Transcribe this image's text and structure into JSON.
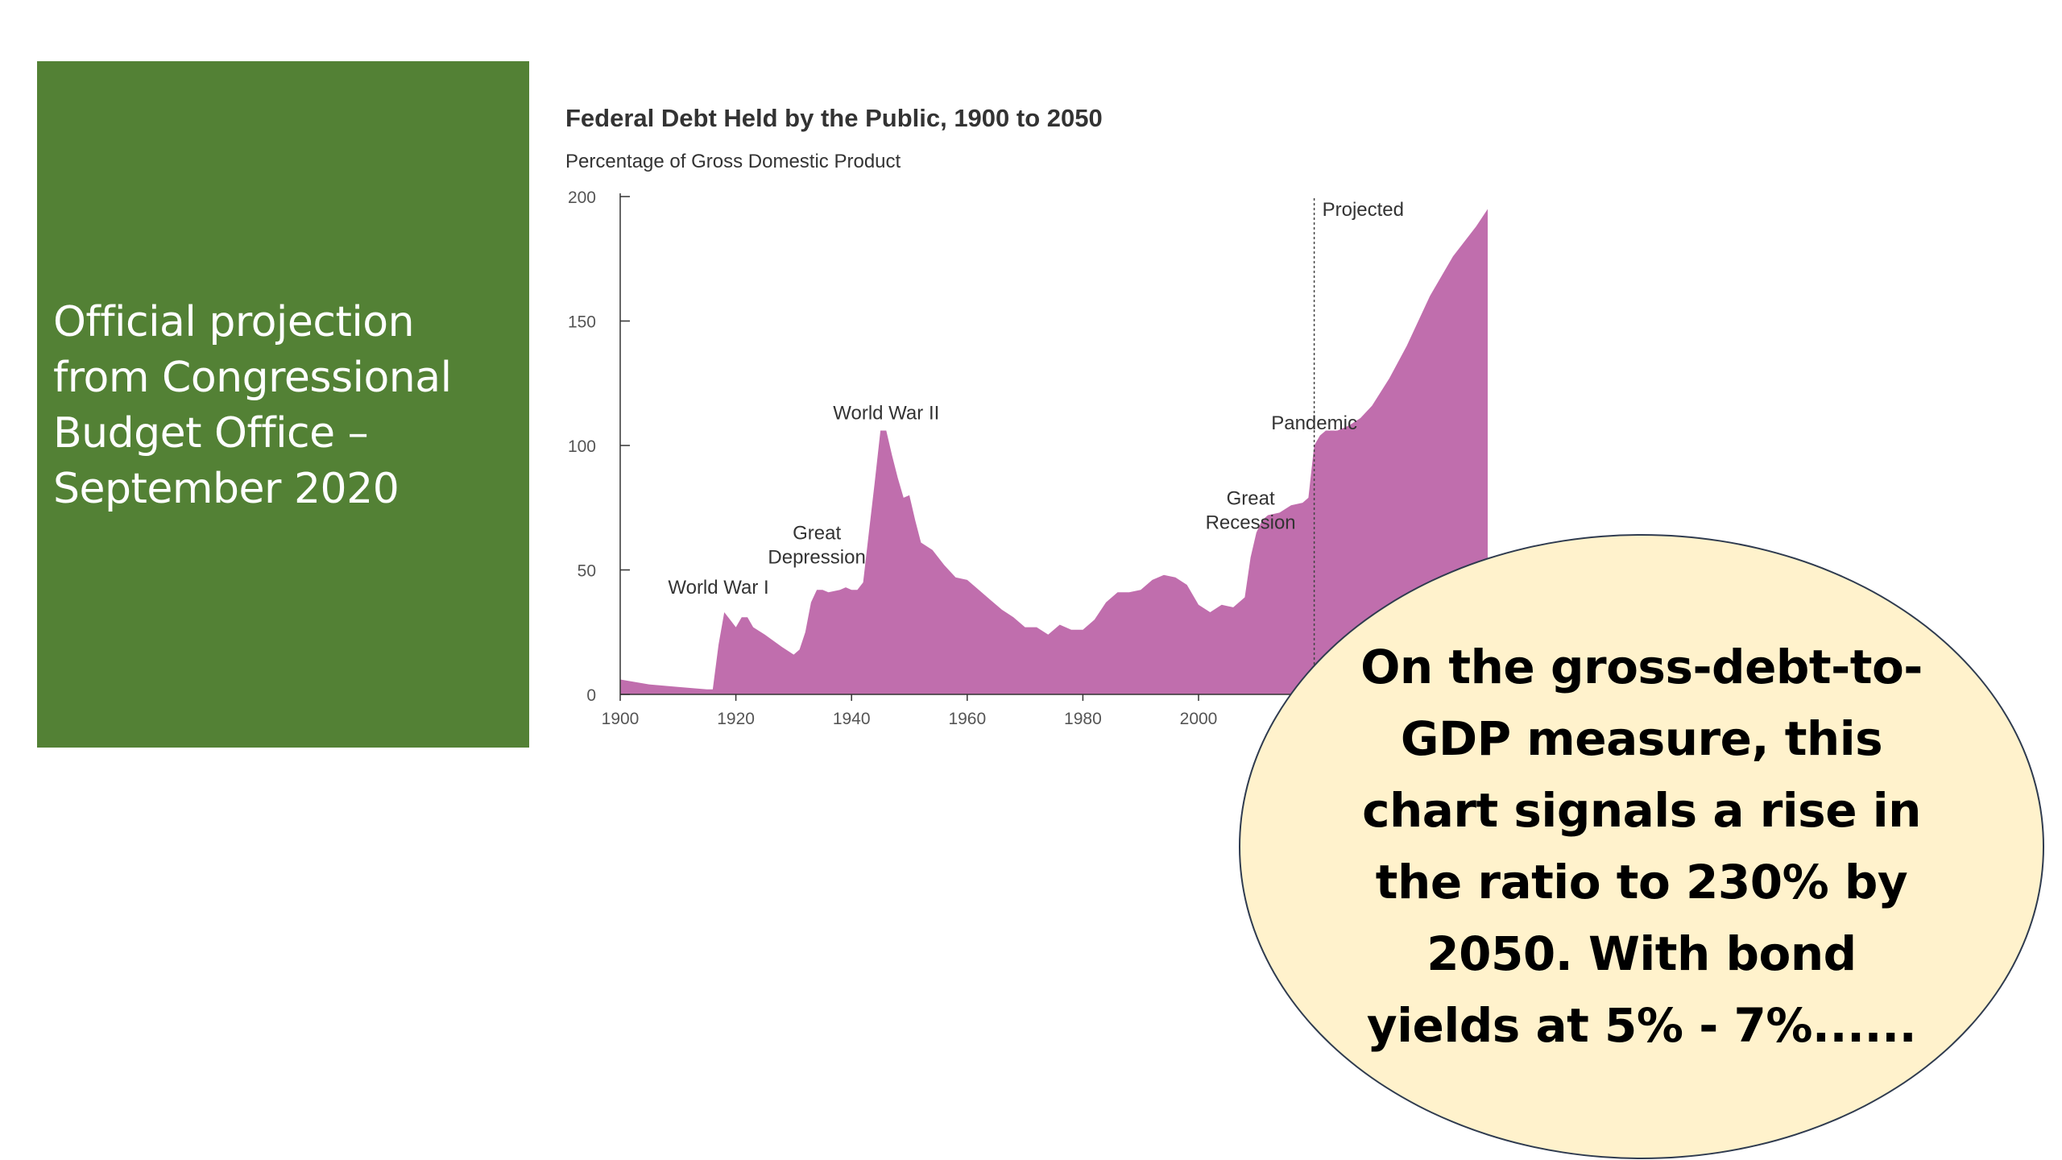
{
  "slide": {
    "title": "Official projection from Congressional Budget Office – September 2020",
    "callout": "On the gross-debt-to-GDP measure, this chart signals a rise in the ratio to 230% by 2050. With bond yields at 5% - 7%......",
    "colors": {
      "panel": "#538135",
      "area": "#c06ead",
      "callout_fill": "#fff2cc"
    }
  },
  "chart_data": {
    "type": "area",
    "title": "Federal Debt Held by the Public, 1900 to 2050",
    "ylabel": "Percentage of Gross Domestic Product",
    "xlabel": "",
    "xlim": [
      1900,
      2050
    ],
    "ylim": [
      0,
      200
    ],
    "xticks": [
      1900,
      1920,
      1940,
      1960,
      1980,
      2000
    ],
    "yticks": [
      0,
      50,
      100,
      150,
      200
    ],
    "projection_start": 2020,
    "projection_label": "Projected",
    "annotations": [
      {
        "text": "World War I",
        "x": 1917,
        "y": 36
      },
      {
        "text": "Great Depression",
        "x": 1934,
        "y": 48
      },
      {
        "text": "World War II",
        "x": 1946,
        "y": 106
      },
      {
        "text": "Great Recession",
        "x": 2009,
        "y": 62
      },
      {
        "text": "Pandemic",
        "x": 2020,
        "y": 102
      }
    ],
    "series": [
      {
        "color": "#c06ead",
        "x": [
          1900,
          1905,
          1910,
          1915,
          1916,
          1917,
          1918,
          1919,
          1920,
          1921,
          1922,
          1923,
          1925,
          1928,
          1930,
          1931,
          1932,
          1933,
          1934,
          1935,
          1936,
          1938,
          1939,
          1940,
          1941,
          1942,
          1943,
          1944,
          1945,
          1946,
          1947,
          1948,
          1949,
          1950,
          1951,
          1952,
          1954,
          1956,
          1958,
          1960,
          1962,
          1964,
          1966,
          1968,
          1970,
          1972,
          1974,
          1976,
          1978,
          1980,
          1982,
          1984,
          1986,
          1988,
          1990,
          1992,
          1994,
          1996,
          1998,
          2000,
          2002,
          2004,
          2006,
          2008,
          2009,
          2010,
          2011,
          2012,
          2014,
          2016,
          2018,
          2019,
          2020,
          2021,
          2022,
          2024,
          2026,
          2028,
          2030,
          2033,
          2036,
          2040,
          2044,
          2048,
          2050
        ],
        "y": [
          6,
          4,
          3,
          2,
          2,
          20,
          33,
          30,
          27,
          31,
          31,
          27,
          24,
          19,
          16,
          18,
          25,
          37,
          42,
          42,
          41,
          42,
          43,
          42,
          42,
          45,
          65,
          85,
          106,
          106,
          96,
          87,
          79,
          80,
          70,
          61,
          58,
          52,
          47,
          46,
          42,
          38,
          34,
          31,
          27,
          27,
          24,
          28,
          26,
          26,
          30,
          37,
          41,
          41,
          42,
          46,
          48,
          47,
          44,
          36,
          33,
          36,
          35,
          39,
          55,
          65,
          70,
          72,
          73,
          76,
          77,
          79,
          100,
          104,
          106,
          106,
          108,
          111,
          116,
          127,
          140,
          160,
          176,
          188,
          195
        ]
      }
    ]
  }
}
